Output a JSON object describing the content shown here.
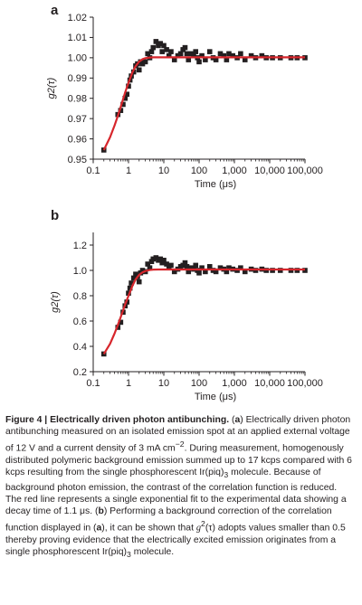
{
  "chart_data": [
    {
      "type": "scatter",
      "panel_label": "a",
      "title": "",
      "xlabel": "Time (μs)",
      "ylabel": "g2(τ)",
      "xscale": "log",
      "xlim": [
        0.1,
        100000
      ],
      "ylim": [
        0.95,
        1.02
      ],
      "xticks": [
        0.1,
        1,
        10,
        100,
        1000,
        10000,
        100000
      ],
      "xtick_labels": [
        "0.1",
        "1",
        "10",
        "100",
        "1,000",
        "10,000",
        "100,000"
      ],
      "yticks": [
        0.95,
        0.96,
        0.97,
        0.98,
        0.99,
        1.0,
        1.01,
        1.02
      ],
      "ytick_labels": [
        "0.95",
        "0.96",
        "0.97",
        "0.98",
        "0.99",
        "1.00",
        "1.01",
        "1.02"
      ],
      "grid": false,
      "series": [
        {
          "marker": "square",
          "color": "#231f20",
          "points": [
            [
              0.2,
              0.9545
            ],
            [
              0.5,
              0.972
            ],
            [
              0.6,
              0.974
            ],
            [
              0.7,
              0.977
            ],
            [
              0.8,
              0.98
            ],
            [
              0.9,
              0.982
            ],
            [
              1.0,
              0.986
            ],
            [
              1.1,
              0.989
            ],
            [
              1.2,
              0.991
            ],
            [
              1.4,
              0.993
            ],
            [
              1.6,
              0.996
            ],
            [
              1.8,
              0.997
            ],
            [
              2.0,
              0.994
            ],
            [
              2.2,
              0.998
            ],
            [
              2.5,
              0.997
            ],
            [
              3.0,
              0.998
            ],
            [
              3.5,
              1.002
            ],
            [
              4.0,
              1.0
            ],
            [
              4.5,
              1.003
            ],
            [
              5.0,
              1.005
            ],
            [
              6.0,
              1.008
            ],
            [
              7.0,
              1.006
            ],
            [
              8.0,
              1.007
            ],
            [
              9.0,
              1.003
            ],
            [
              10,
              1.006
            ],
            [
              12,
              1.004
            ],
            [
              14,
              1.001
            ],
            [
              16,
              1.003
            ],
            [
              20,
              0.999
            ],
            [
              25,
              1.001
            ],
            [
              30,
              1.002
            ],
            [
              35,
              1.004
            ],
            [
              40,
              1.005
            ],
            [
              45,
              1.002
            ],
            [
              50,
              0.999
            ],
            [
              60,
              1.002
            ],
            [
              70,
              1.001
            ],
            [
              80,
              1.003
            ],
            [
              90,
              1.0
            ],
            [
              100,
              0.998
            ],
            [
              120,
              1.001
            ],
            [
              150,
              0.999
            ],
            [
              200,
              1.003
            ],
            [
              250,
              1.0
            ],
            [
              300,
              0.999
            ],
            [
              400,
              1.002
            ],
            [
              500,
              1.001
            ],
            [
              600,
              0.999
            ],
            [
              700,
              1.002
            ],
            [
              900,
              1.001
            ],
            [
              1200,
              1.0
            ],
            [
              1500,
              1.002
            ],
            [
              2000,
              0.999
            ],
            [
              3000,
              1.001
            ],
            [
              4000,
              1.0
            ],
            [
              6000,
              1.001
            ],
            [
              8000,
              1.0
            ],
            [
              12000,
              1.0
            ],
            [
              20000,
              1.0
            ],
            [
              40000,
              1.0
            ],
            [
              60000,
              1.0
            ],
            [
              100000,
              1.0
            ]
          ]
        },
        {
          "type": "line",
          "color": "#d7262c",
          "fit": "single-exponential",
          "x": [
            0.2,
            0.3,
            0.4,
            0.5,
            0.6,
            0.8,
            1.0,
            1.3,
            1.6,
            2.0,
            2.5,
            3.0,
            4.0,
            5.0,
            7.0,
            10,
            20,
            100,
            100000
          ],
          "y": [
            0.9545,
            0.9608,
            0.9665,
            0.9714,
            0.9757,
            0.9828,
            0.9877,
            0.9929,
            0.9959,
            0.9981,
            0.9993,
            0.9998,
            1.0001,
            1.0002,
            1.0002,
            1.0002,
            1.0002,
            1.0002,
            1.0002
          ]
        }
      ]
    },
    {
      "type": "scatter",
      "panel_label": "b",
      "title": "",
      "xlabel": "Time (μs)",
      "ylabel": "g2(τ)",
      "xscale": "log",
      "xlim": [
        0.1,
        100000
      ],
      "ylim": [
        0.2,
        1.3
      ],
      "xticks": [
        0.1,
        1,
        10,
        100,
        1000,
        10000,
        100000
      ],
      "xtick_labels": [
        "0.1",
        "1",
        "10",
        "100",
        "1,000",
        "10,000",
        "100,000"
      ],
      "yticks": [
        0.2,
        0.4,
        0.6,
        0.8,
        1.0,
        1.2
      ],
      "ytick_labels": [
        "0.2",
        "0.4",
        "0.6",
        "0.8",
        "1.0",
        "1.2"
      ],
      "grid": false,
      "series": [
        {
          "marker": "square",
          "color": "#231f20",
          "points": [
            [
              0.2,
              0.34
            ],
            [
              0.5,
              0.55
            ],
            [
              0.6,
              0.59
            ],
            [
              0.7,
              0.67
            ],
            [
              0.8,
              0.72
            ],
            [
              0.9,
              0.75
            ],
            [
              1.0,
              0.82
            ],
            [
              1.1,
              0.86
            ],
            [
              1.2,
              0.9
            ],
            [
              1.4,
              0.94
            ],
            [
              1.6,
              0.97
            ],
            [
              1.8,
              0.95
            ],
            [
              2.0,
              0.91
            ],
            [
              2.2,
              0.98
            ],
            [
              2.5,
              1.0
            ],
            [
              3.0,
              0.99
            ],
            [
              3.5,
              1.05
            ],
            [
              4.0,
              1.02
            ],
            [
              4.5,
              1.07
            ],
            [
              5.0,
              1.09
            ],
            [
              6.0,
              1.1
            ],
            [
              7.0,
              1.08
            ],
            [
              8.0,
              1.09
            ],
            [
              9.0,
              1.06
            ],
            [
              10,
              1.08
            ],
            [
              12,
              1.05
            ],
            [
              14,
              1.02
            ],
            [
              16,
              1.04
            ],
            [
              20,
              0.99
            ],
            [
              25,
              1.01
            ],
            [
              30,
              1.03
            ],
            [
              35,
              1.04
            ],
            [
              40,
              1.06
            ],
            [
              45,
              1.03
            ],
            [
              50,
              0.99
            ],
            [
              60,
              1.02
            ],
            [
              70,
              1.01
            ],
            [
              80,
              1.04
            ],
            [
              90,
              1.0
            ],
            [
              100,
              0.98
            ],
            [
              120,
              1.02
            ],
            [
              150,
              0.99
            ],
            [
              200,
              1.03
            ],
            [
              250,
              1.0
            ],
            [
              300,
              0.99
            ],
            [
              400,
              1.02
            ],
            [
              500,
              1.01
            ],
            [
              600,
              0.99
            ],
            [
              700,
              1.02
            ],
            [
              900,
              1.01
            ],
            [
              1200,
              1.0
            ],
            [
              1500,
              1.02
            ],
            [
              2000,
              0.99
            ],
            [
              3000,
              1.01
            ],
            [
              4000,
              1.0
            ],
            [
              6000,
              1.01
            ],
            [
              8000,
              1.0
            ],
            [
              12000,
              1.0
            ],
            [
              20000,
              1.0
            ],
            [
              40000,
              1.0
            ],
            [
              60000,
              1.0
            ],
            [
              100000,
              1.0
            ]
          ]
        },
        {
          "type": "line",
          "color": "#d7262c",
          "fit": "single-exponential",
          "x": [
            0.2,
            0.3,
            0.4,
            0.5,
            0.6,
            0.8,
            1.0,
            1.3,
            1.6,
            2.0,
            2.5,
            3.0,
            4.0,
            5.0,
            7.0,
            10,
            20,
            100,
            100000
          ],
          "y": [
            0.34,
            0.42,
            0.5,
            0.57,
            0.63,
            0.73,
            0.8,
            0.88,
            0.93,
            0.965,
            0.985,
            0.995,
            1.003,
            1.006,
            1.007,
            1.007,
            1.007,
            1.007,
            1.007
          ]
        }
      ]
    }
  ],
  "caption": {
    "label": "Figure 4 | Electrically driven photon antibunching.",
    "part_a_marker": "a",
    "part_a_text_1": " Electrically driven photon antibunching measured on an isolated emission spot at an applied external voltage of 12 V and a current density of 3 mA cm",
    "exponent": "−2",
    "part_a_text_2": ". During measurement, homogenously distributed polymeric background emission summed up to 17 kcps compared with 6 kcps resulting from the single phosphorescent Ir(piq)",
    "subscript_3": "3",
    "part_a_text_3": " molecule. Because of background photon emission, the contrast of the correlation function is reduced. The red line represents a single exponential fit to the experimental data showing a decay time of 1.1 μs. ",
    "part_b_marker": "b",
    "part_b_text_1": " Performing a background correction of the correlation function displayed in (",
    "part_b_ref": "a",
    "part_b_text_2": "), it can be shown that ",
    "g_symbol": "g",
    "g_superscript": "2",
    "tau": "(τ)",
    "part_b_text_3": " adopts values smaller than 0.5 thereby proving evidence that the electrically excited emission originates from a single phosphorescent Ir(piq)",
    "part_b_text_4": " molecule."
  }
}
